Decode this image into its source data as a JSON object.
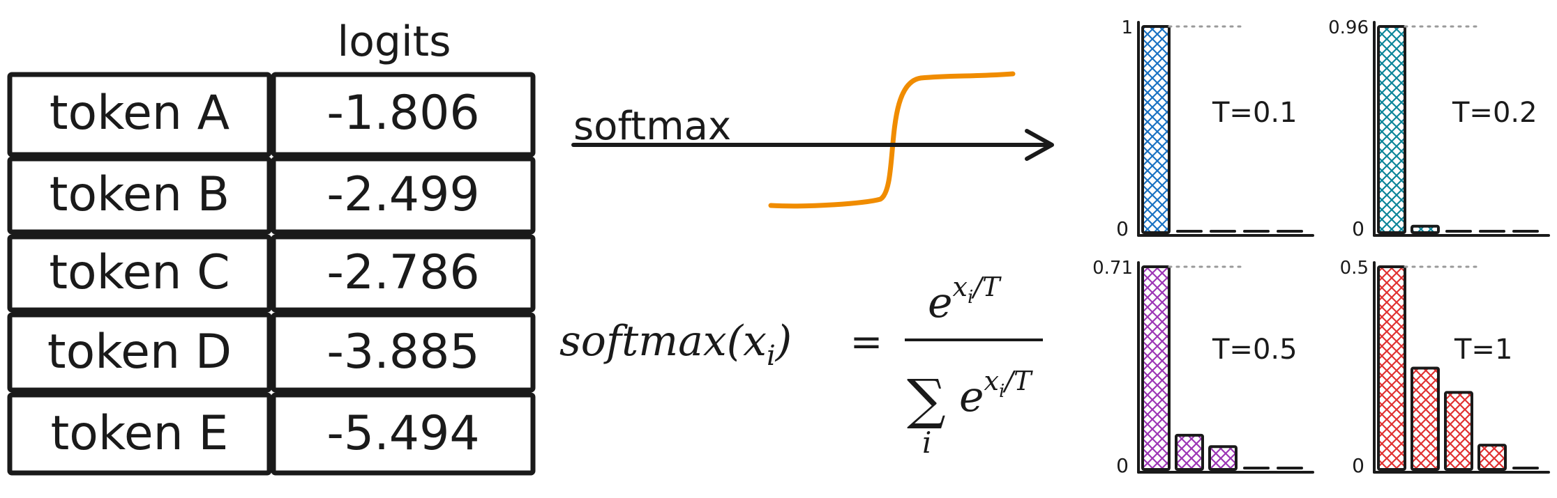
{
  "table": {
    "header": "logits",
    "rows": [
      {
        "token": "token A",
        "logit": "-1.806"
      },
      {
        "token": "token B",
        "logit": "-2.499"
      },
      {
        "token": "token C",
        "logit": "-2.786"
      },
      {
        "token": "token D",
        "logit": "-3.885"
      },
      {
        "token": "token E",
        "logit": "-5.494"
      }
    ]
  },
  "arrow_label": "softmax",
  "formula": {
    "lhs": "softmax(x",
    "lhs_sub": "i",
    "lhs_close": ")",
    "equals": "=",
    "numerator_base": "e",
    "numerator_exp": "x",
    "numerator_exp_sub": "i",
    "numerator_exp_tail": "/T",
    "denominator_sum": "∑",
    "denominator_index": "i",
    "denominator_base": "e",
    "denominator_exp": "x",
    "denominator_exp_sub": "i",
    "denominator_exp_tail": "/T"
  },
  "colors": {
    "ink": "#1a1a1a",
    "curve": "#f08c00",
    "dotted": "#9a9a9a"
  },
  "chart_data": [
    {
      "type": "bar",
      "temperature_label": "T=0.1",
      "top_label": "1",
      "zero_label": "0",
      "values": [
        1.0,
        0.0,
        0.0,
        0.0,
        0.0
      ],
      "ylim": [
        0,
        1
      ],
      "color": "#1971c2"
    },
    {
      "type": "bar",
      "temperature_label": "T=0.2",
      "top_label": "0.96",
      "zero_label": "0",
      "values": [
        0.96,
        0.03,
        0.01,
        0.0,
        0.0
      ],
      "ylim": [
        0,
        0.96
      ],
      "color": "#0c8599"
    },
    {
      "type": "bar",
      "temperature_label": "T=0.5",
      "top_label": "0.71",
      "zero_label": "0",
      "values": [
        0.71,
        0.12,
        0.08,
        0.01,
        0.0
      ],
      "ylim": [
        0,
        0.71
      ],
      "color": "#9c36b5"
    },
    {
      "type": "bar",
      "temperature_label": "T=1",
      "top_label": "0.5",
      "zero_label": "0",
      "values": [
        0.5,
        0.25,
        0.19,
        0.06,
        0.01
      ],
      "ylim": [
        0,
        0.5
      ],
      "color": "#e03131"
    }
  ]
}
